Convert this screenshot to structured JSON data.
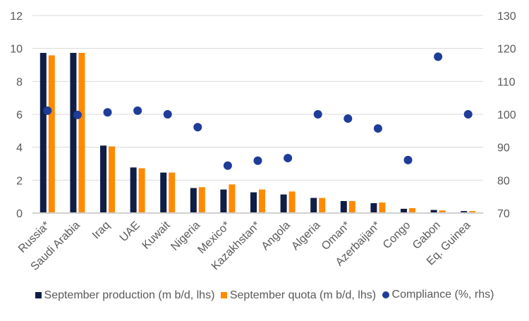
{
  "chart_data": {
    "type": "bar",
    "title": "",
    "xlabel": "",
    "ylabel": "",
    "y2label": "",
    "categories": [
      "Russia*",
      "Saudi Arabia",
      "Iraq",
      "UAE",
      "Kuwait",
      "Nigeria",
      "Mexico*",
      "Kazakhstan*",
      "Angola",
      "Algeria",
      "Oman*",
      "Azerbaijan*",
      "Congo",
      "Gabon",
      "Eq. Guinea"
    ],
    "series": [
      {
        "name": "September production (m b/d, lhs)",
        "type": "bar",
        "axis": "left",
        "color": "#0f1e46",
        "values": [
          9.73,
          9.73,
          4.1,
          2.77,
          2.46,
          1.52,
          1.43,
          1.26,
          1.13,
          0.92,
          0.73,
          0.6,
          0.26,
          0.19,
          0.12
        ]
      },
      {
        "name": "September quota (m b/d, lhs)",
        "type": "bar",
        "axis": "left",
        "color": "#ff8a00",
        "values": [
          9.58,
          9.73,
          4.05,
          2.72,
          2.46,
          1.57,
          1.74,
          1.43,
          1.31,
          0.92,
          0.73,
          0.64,
          0.3,
          0.16,
          0.12
        ]
      },
      {
        "name": "Compliance (%, rhs)",
        "type": "scatter",
        "axis": "right",
        "color": "#1f3c99",
        "values": [
          101.1,
          99.8,
          100.6,
          101.1,
          100.0,
          96.1,
          84.4,
          85.9,
          86.7,
          100.0,
          98.7,
          95.7,
          86.1,
          117.5,
          100.0
        ]
      }
    ],
    "ylim": [
      0,
      12
    ],
    "yticks": [
      "0",
      "2",
      "4",
      "6",
      "8",
      "10",
      "12"
    ],
    "y2lim": [
      70,
      130
    ],
    "y2ticks": [
      "70",
      "80",
      "90",
      "100",
      "110",
      "120",
      "130"
    ],
    "grid": true,
    "legend_position": "bottom"
  }
}
